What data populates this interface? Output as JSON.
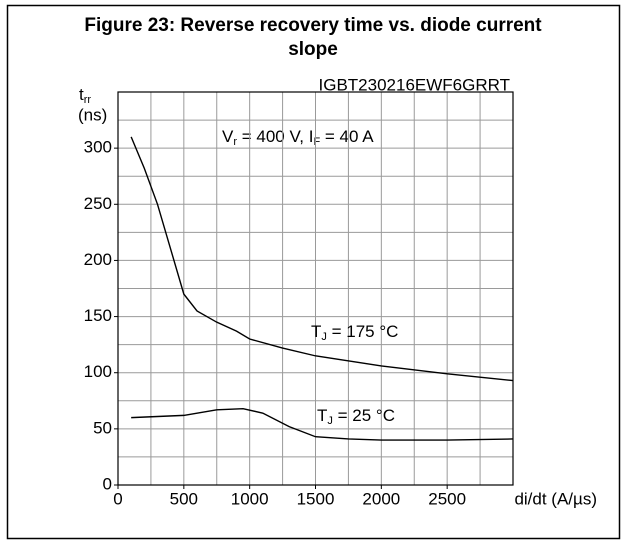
{
  "chart_data": {
    "type": "line",
    "title_lines": [
      "Figure 23: Reverse recovery time vs. diode current",
      "slope"
    ],
    "y_label": {
      "main": "t",
      "sub": "rr",
      "unit": "(ns)"
    },
    "x_label": "di/dt (A/µs)",
    "code": "IGBT230216EWF6GRRT",
    "condition": {
      "parts": [
        "V",
        "r",
        " = 400 V, I",
        "F",
        " = 40 A"
      ]
    },
    "xlim": [
      0,
      3000
    ],
    "ylim": [
      0,
      350
    ],
    "xticks": [
      0,
      500,
      1000,
      1500,
      2000,
      2500
    ],
    "yticks": [
      0,
      50,
      100,
      150,
      200,
      250,
      300
    ],
    "xgrid": [
      250,
      500,
      750,
      1000,
      1250,
      1500,
      1750,
      2000,
      2250,
      2500,
      2750
    ],
    "ygrid": [
      25,
      50,
      75,
      100,
      125,
      150,
      175,
      200,
      225,
      250,
      275,
      300,
      325
    ],
    "grid": true,
    "series": [
      {
        "label": {
          "main": "T",
          "sub": "J",
          "rest": " = 175 °C"
        },
        "color": "#000000",
        "x": [
          100,
          200,
          300,
          400,
          500,
          600,
          750,
          900,
          1000,
          1250,
          1500,
          2000,
          2500,
          3000
        ],
        "values": [
          310,
          282,
          250,
          210,
          170,
          155,
          145,
          137,
          130,
          122,
          115,
          106,
          99,
          93
        ]
      },
      {
        "label": {
          "main": "T",
          "sub": "J",
          "rest": " = 25 °C"
        },
        "color": "#000000",
        "x": [
          100,
          500,
          750,
          950,
          1100,
          1300,
          1500,
          1750,
          2000,
          2500,
          3000
        ],
        "values": [
          60,
          62,
          67,
          68,
          64,
          52,
          43,
          41,
          40,
          40,
          41
        ]
      }
    ]
  }
}
